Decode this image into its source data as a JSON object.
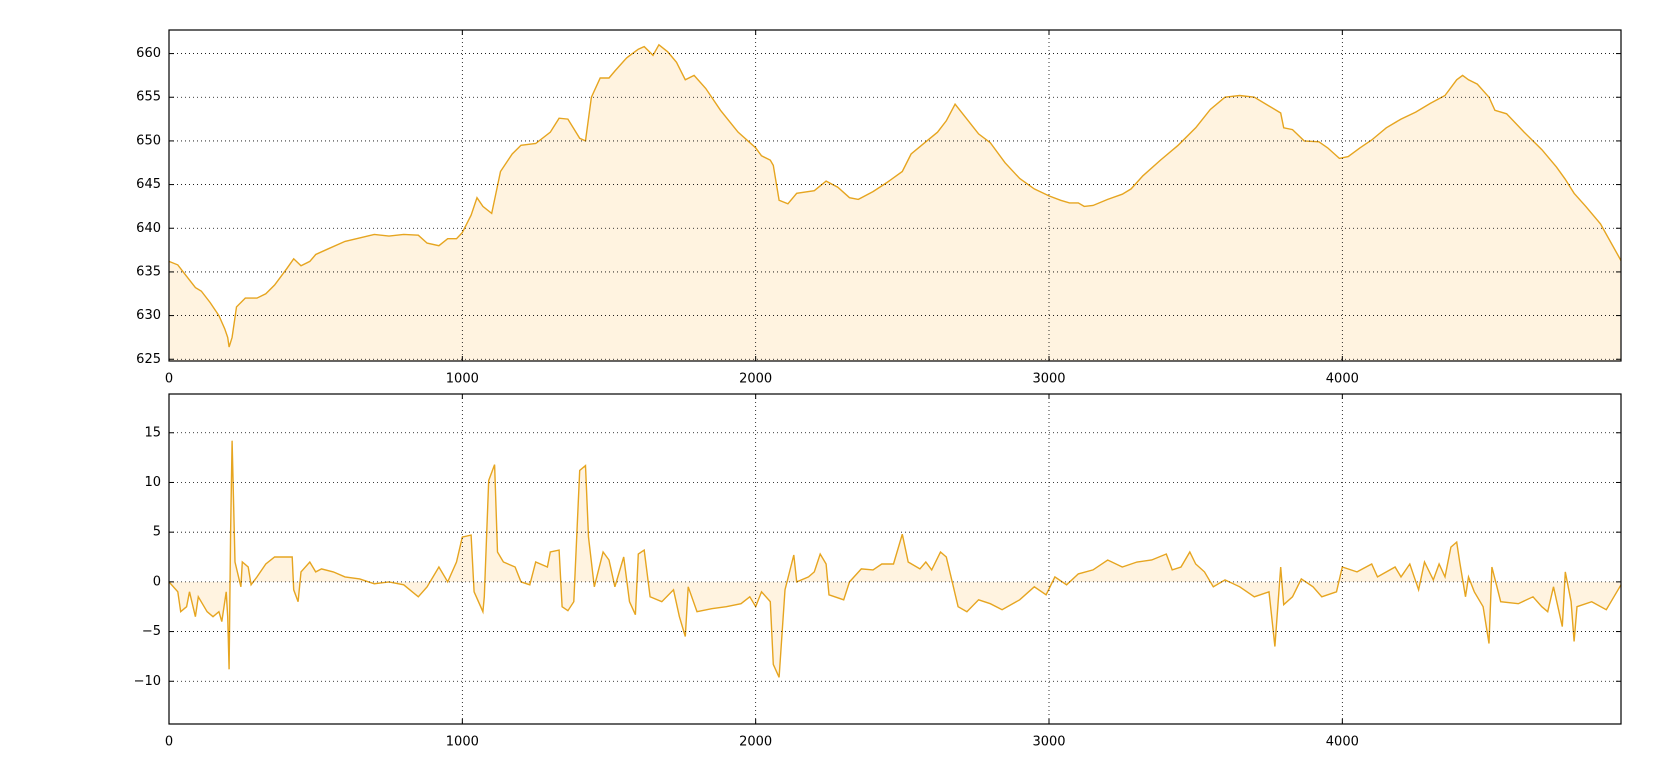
{
  "chart_data": [
    {
      "type": "area",
      "color": "#e6a520",
      "fill_color": "#fff3e0",
      "grid": true,
      "xlim": [
        0,
        4950
      ],
      "xticks": [
        0,
        1000,
        2000,
        3000,
        4000
      ],
      "ylim": [
        624.8,
        662.7
      ],
      "yticks": [
        625,
        630,
        635,
        640,
        645,
        650,
        655,
        660
      ],
      "x": [
        0,
        30,
        60,
        90,
        110,
        140,
        170,
        190,
        200,
        205,
        215,
        230,
        260,
        300,
        330,
        360,
        400,
        425,
        450,
        480,
        500,
        540,
        600,
        650,
        700,
        750,
        800,
        850,
        880,
        920,
        950,
        980,
        1000,
        1030,
        1050,
        1070,
        1100,
        1130,
        1170,
        1200,
        1250,
        1300,
        1330,
        1360,
        1400,
        1420,
        1440,
        1470,
        1500,
        1520,
        1560,
        1600,
        1620,
        1650,
        1670,
        1700,
        1730,
        1760,
        1790,
        1830,
        1880,
        1940,
        2000,
        2020,
        2050,
        2060,
        2080,
        2110,
        2140,
        2200,
        2240,
        2280,
        2320,
        2350,
        2400,
        2450,
        2500,
        2530,
        2580,
        2620,
        2650,
        2680,
        2720,
        2760,
        2800,
        2850,
        2900,
        2950,
        3000,
        3040,
        3070,
        3100,
        3120,
        3150,
        3200,
        3250,
        3280,
        3320,
        3380,
        3440,
        3500,
        3550,
        3600,
        3650,
        3700,
        3750,
        3790,
        3800,
        3830,
        3870,
        3920,
        3950,
        3990,
        4020,
        4060,
        4100,
        4150,
        4200,
        4250,
        4300,
        4350,
        4390,
        4410,
        4430,
        4460,
        4500,
        4520,
        4560,
        4620,
        4680,
        4730,
        4760,
        4790,
        4830,
        4880,
        4950
      ],
      "values": [
        636.2,
        635.8,
        634.5,
        633.2,
        632.8,
        631.5,
        630,
        628.5,
        627.5,
        626.4,
        627.5,
        631,
        632,
        632,
        632.5,
        633.5,
        635.3,
        636.5,
        635.7,
        636.2,
        637,
        637.6,
        638.5,
        638.9,
        639.3,
        639.1,
        639.3,
        639.2,
        638.3,
        638,
        638.8,
        638.8,
        639.5,
        641.5,
        643.5,
        642.5,
        641.7,
        646.5,
        648.5,
        649.5,
        649.7,
        651,
        652.6,
        652.5,
        650.3,
        650,
        655,
        657.2,
        657.2,
        658,
        659.5,
        660.5,
        660.8,
        659.8,
        661,
        660.2,
        659,
        657,
        657.5,
        656,
        653.5,
        651,
        649.2,
        648.3,
        647.8,
        647.2,
        643.2,
        642.8,
        644,
        644.3,
        645.4,
        644.7,
        643.5,
        643.3,
        644.2,
        645.3,
        646.5,
        648.5,
        649.9,
        651,
        652.3,
        654.2,
        652.5,
        650.8,
        649.8,
        647.5,
        645.7,
        644.5,
        643.7,
        643.2,
        642.9,
        642.9,
        642.5,
        642.6,
        643.3,
        643.9,
        644.5,
        646,
        647.8,
        649.5,
        651.5,
        653.6,
        655,
        655.2,
        655,
        654,
        653.2,
        651.5,
        651.3,
        650,
        649.9,
        649.2,
        648,
        648.2,
        649.2,
        650.1,
        651.5,
        652.5,
        653.3,
        654.3,
        655.2,
        657,
        657.5,
        657,
        656.5,
        655,
        653.5,
        653.1,
        651,
        649,
        647,
        645.6,
        644,
        642.5,
        640.5,
        636.3
      ]
    },
    {
      "type": "area",
      "color": "#e6a520",
      "fill_color": "#fff3e0",
      "grid": true,
      "xlim": [
        0,
        4950
      ],
      "xticks": [
        0,
        1000,
        2000,
        3000,
        4000
      ],
      "ylim": [
        -14.3,
        18.9
      ],
      "yticks": [
        {
          "value": -10,
          "label": "−10"
        },
        {
          "value": -5,
          "label": "−5"
        },
        0,
        5,
        10,
        15
      ],
      "x": [
        0,
        30,
        40,
        60,
        70,
        90,
        100,
        130,
        150,
        170,
        180,
        195,
        200,
        205,
        210,
        215,
        225,
        245,
        250,
        270,
        280,
        300,
        330,
        360,
        400,
        420,
        425,
        440,
        450,
        480,
        500,
        520,
        560,
        600,
        650,
        700,
        750,
        800,
        850,
        880,
        920,
        950,
        980,
        1000,
        1030,
        1040,
        1070,
        1075,
        1090,
        1110,
        1120,
        1140,
        1180,
        1200,
        1230,
        1250,
        1290,
        1300,
        1330,
        1340,
        1360,
        1380,
        1400,
        1420,
        1430,
        1450,
        1480,
        1500,
        1520,
        1550,
        1570,
        1590,
        1600,
        1620,
        1640,
        1680,
        1720,
        1740,
        1760,
        1770,
        1800,
        1850,
        1900,
        1950,
        1980,
        2000,
        2020,
        2050,
        2060,
        2080,
        2100,
        2130,
        2140,
        2180,
        2200,
        2220,
        2240,
        2250,
        2300,
        2320,
        2360,
        2400,
        2430,
        2470,
        2500,
        2520,
        2560,
        2580,
        2600,
        2630,
        2650,
        2690,
        2720,
        2760,
        2800,
        2840,
        2900,
        2950,
        2990,
        3020,
        3060,
        3100,
        3150,
        3200,
        3250,
        3300,
        3350,
        3400,
        3420,
        3450,
        3480,
        3500,
        3530,
        3560,
        3600,
        3650,
        3700,
        3750,
        3770,
        3780,
        3790,
        3800,
        3830,
        3860,
        3900,
        3930,
        3980,
        4000,
        4050,
        4100,
        4120,
        4180,
        4200,
        4230,
        4260,
        4280,
        4310,
        4330,
        4350,
        4370,
        4390,
        4400,
        4420,
        4430,
        4450,
        4480,
        4500,
        4510,
        4540,
        4600,
        4650,
        4680,
        4700,
        4720,
        4750,
        4760,
        4780,
        4790,
        4800,
        4850,
        4900,
        4950
      ],
      "values": [
        0,
        -1,
        -3,
        -2.5,
        -1,
        -3.5,
        -1.5,
        -3,
        -3.5,
        -3,
        -4,
        -1,
        -3.5,
        -8.8,
        5,
        14.2,
        2,
        -0.5,
        2,
        1.5,
        -0.3,
        0.5,
        1.8,
        2.5,
        2.5,
        2.5,
        -0.8,
        -2,
        1,
        2,
        1,
        1.3,
        1,
        0.5,
        0.3,
        -0.2,
        0,
        -0.3,
        -1.5,
        -0.5,
        1.5,
        0,
        2,
        4.5,
        4.7,
        -1,
        -3,
        -1.5,
        10.2,
        11.8,
        3,
        2,
        1.5,
        0,
        -0.3,
        2,
        1.5,
        3,
        3.2,
        -2.5,
        -2.9,
        -2,
        11.2,
        11.7,
        4.5,
        -0.5,
        3,
        2.2,
        -0.5,
        2.5,
        -2,
        -3.3,
        2.8,
        3.2,
        -1.5,
        -2,
        -0.8,
        -3.5,
        -5.5,
        -0.5,
        -3,
        -2.7,
        -2.5,
        -2.2,
        -1.5,
        -2.5,
        -1,
        -2,
        -8.3,
        -9.6,
        -0.8,
        2.7,
        0,
        0.5,
        1,
        2.8,
        1.8,
        -1.3,
        -1.8,
        0,
        1.3,
        1.2,
        1.8,
        1.8,
        4.8,
        2,
        1.3,
        2,
        1.2,
        3,
        2.5,
        -2.5,
        -3,
        -1.8,
        -2.2,
        -2.8,
        -1.8,
        -0.5,
        -1.3,
        0.5,
        -0.3,
        0.8,
        1.2,
        2.2,
        1.5,
        2,
        2.2,
        2.8,
        1.2,
        1.5,
        3,
        1.8,
        1,
        -0.5,
        0.2,
        -0.5,
        -1.5,
        -1,
        -6.5,
        -2.5,
        1.5,
        -2.3,
        -1.5,
        0.3,
        -0.5,
        -1.5,
        -1,
        1.5,
        1,
        1.8,
        0.5,
        1.5,
        0.5,
        1.8,
        -0.8,
        2,
        0.2,
        1.8,
        0.5,
        3.5,
        4,
        2,
        -1.5,
        0.5,
        -1,
        -2.5,
        -6.2,
        1.5,
        -2,
        -2.2,
        -1.5,
        -2.5,
        -3,
        -0.5,
        -4.5,
        1,
        -2,
        -6,
        -2.5,
        -2,
        -2.8,
        -0.3
      ]
    }
  ]
}
